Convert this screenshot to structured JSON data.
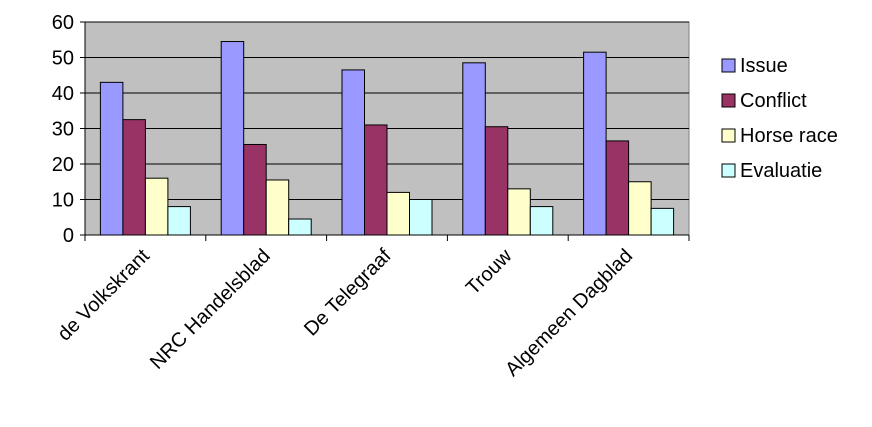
{
  "chart_data": {
    "type": "bar",
    "categories": [
      "de Volkskrant",
      "NRC Handelsblad",
      "De Telegraaf",
      "Trouw",
      "Algemeen Dagblad"
    ],
    "series": [
      {
        "name": "Issue",
        "values": [
          43,
          54.5,
          46.5,
          48.5,
          51.5
        ],
        "color": "#9999ff"
      },
      {
        "name": "Conflict",
        "values": [
          32.5,
          25.5,
          31,
          30.5,
          26.5
        ],
        "color": "#993366"
      },
      {
        "name": "Horse race",
        "values": [
          16,
          15.5,
          12,
          13,
          15
        ],
        "color": "#ffffcc"
      },
      {
        "name": "Evaluatie",
        "values": [
          8,
          4.5,
          10,
          8,
          7.5
        ],
        "color": "#ccffff"
      }
    ],
    "ylim": [
      0,
      60
    ],
    "yticks": [
      0,
      10,
      20,
      30,
      40,
      50,
      60
    ],
    "title": "",
    "xlabel": "",
    "ylabel": "",
    "grid": true,
    "legend": "right",
    "plot_background": "#c0c0c0"
  }
}
